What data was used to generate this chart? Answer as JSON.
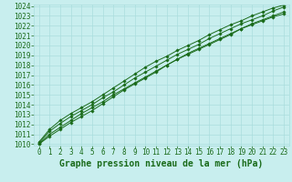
{
  "title": "Graphe pression niveau de la mer (hPa)",
  "x_hours": [
    0,
    1,
    2,
    3,
    4,
    5,
    6,
    7,
    8,
    9,
    10,
    11,
    12,
    13,
    14,
    15,
    16,
    17,
    18,
    19,
    20,
    21,
    22,
    23
  ],
  "series": [
    [
      1010.0,
      1010.8,
      1011.5,
      1012.2,
      1012.8,
      1013.4,
      1014.1,
      1014.8,
      1015.5,
      1016.1,
      1016.7,
      1017.3,
      1018.0,
      1018.6,
      1019.1,
      1019.6,
      1020.1,
      1020.6,
      1021.1,
      1021.7,
      1022.1,
      1022.5,
      1022.9,
      1023.2
    ],
    [
      1010.0,
      1011.0,
      1011.7,
      1012.4,
      1013.1,
      1013.7,
      1014.3,
      1015.0,
      1015.6,
      1016.2,
      1016.8,
      1017.4,
      1018.0,
      1018.6,
      1019.2,
      1019.7,
      1020.2,
      1020.7,
      1021.2,
      1021.7,
      1022.2,
      1022.6,
      1023.0,
      1023.4
    ],
    [
      1010.1,
      1011.3,
      1012.1,
      1012.8,
      1013.4,
      1014.0,
      1014.7,
      1015.3,
      1016.0,
      1016.7,
      1017.3,
      1017.9,
      1018.5,
      1019.1,
      1019.6,
      1020.1,
      1020.7,
      1021.2,
      1021.7,
      1022.2,
      1022.6,
      1023.0,
      1023.5,
      1023.9
    ],
    [
      1010.2,
      1011.5,
      1012.4,
      1013.1,
      1013.7,
      1014.3,
      1015.0,
      1015.7,
      1016.4,
      1017.1,
      1017.8,
      1018.4,
      1018.9,
      1019.5,
      1020.0,
      1020.5,
      1021.1,
      1021.6,
      1022.1,
      1022.5,
      1023.0,
      1023.4,
      1023.8,
      1024.1
    ]
  ],
  "line_color": "#1a6b1a",
  "marker": "D",
  "marker_size": 1.8,
  "bg_color": "#c8eeee",
  "grid_color": "#aadddd",
  "text_color": "#1a6b1a",
  "ylim_min": 1010,
  "ylim_max": 1024,
  "yticks": [
    1010,
    1011,
    1012,
    1013,
    1014,
    1015,
    1016,
    1017,
    1018,
    1019,
    1020,
    1021,
    1022,
    1023,
    1024
  ],
  "xticks": [
    0,
    1,
    2,
    3,
    4,
    5,
    6,
    7,
    8,
    9,
    10,
    11,
    12,
    13,
    14,
    15,
    16,
    17,
    18,
    19,
    20,
    21,
    22,
    23
  ],
  "title_fontsize": 7.0,
  "tick_fontsize": 5.5,
  "linewidth": 0.7
}
